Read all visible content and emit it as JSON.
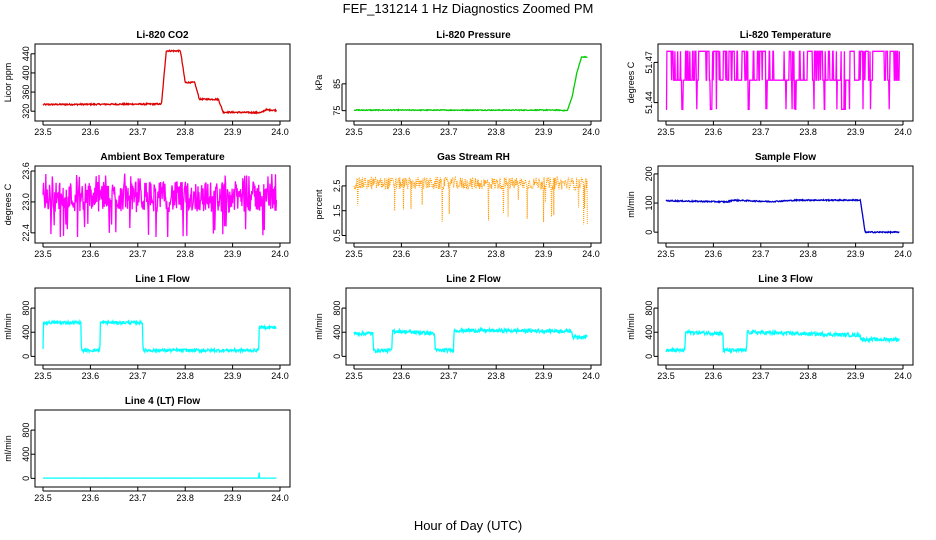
{
  "title": "FEF_131214  1 Hz Diagnostics Zoomed PM",
  "xlabel": "Hour of Day (UTC)",
  "chart_data": [
    {
      "id": "co2",
      "type": "line",
      "title": "Li-820 CO2",
      "ylabel": "Licor ppm",
      "color": "#dd0000",
      "xlim": [
        23.5,
        24.0
      ],
      "ylim": [
        310,
        450
      ],
      "yticks": [
        "320",
        "360",
        "400",
        "440"
      ],
      "ytick_values": [
        320,
        360,
        400,
        440
      ],
      "xticks": [
        "23.5",
        "23.6",
        "23.7",
        "23.8",
        "23.9",
        "24.0"
      ],
      "segments": [
        [
          23.5,
          334
        ],
        [
          23.75,
          335
        ],
        [
          23.76,
          446
        ],
        [
          23.79,
          446
        ],
        [
          23.8,
          380
        ],
        [
          23.82,
          380
        ],
        [
          23.83,
          345
        ],
        [
          23.87,
          345
        ],
        [
          23.88,
          318
        ],
        [
          23.96,
          317
        ],
        [
          23.97,
          323
        ],
        [
          23.99,
          322
        ]
      ],
      "noise": 1.5
    },
    {
      "id": "pressure",
      "type": "line",
      "title": "Li-820 Pressure",
      "ylabel": "kPa",
      "color": "#00cc00",
      "xlim": [
        23.5,
        24.0
      ],
      "ylim": [
        73,
        98
      ],
      "yticks": [
        "75",
        "85"
      ],
      "ytick_values": [
        75,
        85
      ],
      "xticks": [
        "23.5",
        "23.6",
        "23.7",
        "23.8",
        "23.9",
        "24.0"
      ],
      "segments": [
        [
          23.5,
          75.2
        ],
        [
          23.93,
          75.2
        ],
        [
          23.95,
          75.0
        ],
        [
          23.96,
          80
        ],
        [
          23.97,
          89
        ],
        [
          23.98,
          95
        ],
        [
          24.0,
          95
        ]
      ],
      "noise": 0.15
    },
    {
      "id": "licor_temp",
      "type": "line",
      "title": "Li-820 Temperature",
      "ylabel": "degrees C",
      "color": "#ff00ff",
      "xlim": [
        23.5,
        24.0
      ],
      "ylim": [
        51.43,
        51.48
      ],
      "yticks": [
        "51.44",
        "51.47"
      ],
      "ytick_values": [
        51.44,
        51.47
      ],
      "xticks": [
        "23.5",
        "23.6",
        "23.7",
        "23.8",
        "23.9",
        "24.0"
      ],
      "levels": [
        51.435,
        51.4567,
        51.4783
      ],
      "pattern": "discrete"
    },
    {
      "id": "ambient_box_temp",
      "type": "line",
      "title": "Ambient Box Temperature",
      "ylabel": "degrees C",
      "color": "#ff00ff",
      "xlim": [
        23.5,
        24.0
      ],
      "ylim": [
        22.3,
        23.6
      ],
      "yticks": [
        "22.4",
        "23.0",
        "23.6"
      ],
      "ytick_values": [
        22.4,
        23.0,
        23.6
      ],
      "xticks": [
        "23.5",
        "23.6",
        "23.7",
        "23.8",
        "23.9",
        "24.0"
      ],
      "segments": [
        [
          23.5,
          23.1
        ],
        [
          24.0,
          23.1
        ]
      ],
      "noise": 0.3,
      "pattern": "noisy"
    },
    {
      "id": "gas_stream_rh",
      "type": "scatter",
      "title": "Gas Stream RH",
      "ylabel": "percent",
      "color": "#ff9900",
      "xlim": [
        23.5,
        24.0
      ],
      "ylim": [
        0.4,
        3.1
      ],
      "yticks": [
        "0.5",
        "1.5",
        "2.5"
      ],
      "ytick_values": [
        0.5,
        1.5,
        2.5
      ],
      "xticks": [
        "23.5",
        "23.6",
        "23.7",
        "23.8",
        "23.9",
        "24.0"
      ],
      "segments": [
        [
          23.5,
          2.6
        ],
        [
          24.0,
          2.6
        ]
      ],
      "noise": 0.25,
      "pattern": "rh"
    },
    {
      "id": "sample_flow",
      "type": "line",
      "title": "Sample Flow",
      "ylabel": "ml/min",
      "color": "#0000cc",
      "xlim": [
        23.5,
        24.0
      ],
      "ylim": [
        -20,
        210
      ],
      "yticks": [
        "0",
        "100",
        "200"
      ],
      "ytick_values": [
        0,
        100,
        200
      ],
      "xticks": [
        "23.5",
        "23.6",
        "23.7",
        "23.8",
        "23.9",
        "24.0"
      ],
      "segments": [
        [
          23.5,
          108
        ],
        [
          23.63,
          104
        ],
        [
          23.64,
          110
        ],
        [
          23.72,
          105
        ],
        [
          23.78,
          110
        ],
        [
          23.91,
          110
        ],
        [
          23.92,
          0
        ],
        [
          24.0,
          0
        ]
      ],
      "noise": 2
    },
    {
      "id": "line1_flow",
      "type": "line",
      "title": "Line 1 Flow",
      "ylabel": "ml/min",
      "color": "#00ffff",
      "xlim": [
        23.5,
        24.0
      ],
      "ylim": [
        -60,
        1050
      ],
      "yticks": [
        "0",
        "400",
        "800"
      ],
      "ytick_values": [
        0,
        400,
        800
      ],
      "xticks": [
        "23.5",
        "23.6",
        "23.7",
        "23.8",
        "23.9",
        "24.0"
      ],
      "segments": [
        [
          23.5,
          100
        ],
        [
          23.501,
          560
        ],
        [
          23.58,
          560
        ],
        [
          23.581,
          100
        ],
        [
          23.62,
          100
        ],
        [
          23.621,
          560
        ],
        [
          23.71,
          560
        ],
        [
          23.711,
          100
        ],
        [
          23.955,
          100
        ],
        [
          23.956,
          480
        ],
        [
          23.99,
          480
        ]
      ],
      "noise": 25
    },
    {
      "id": "line2_flow",
      "type": "line",
      "title": "Line 2 Flow",
      "ylabel": "ml/min",
      "color": "#00ffff",
      "xlim": [
        23.5,
        24.0
      ],
      "ylim": [
        -60,
        1050
      ],
      "yticks": [
        "0",
        "400",
        "800"
      ],
      "ytick_values": [
        0,
        400,
        800
      ],
      "xticks": [
        "23.5",
        "23.6",
        "23.7",
        "23.8",
        "23.9",
        "24.0"
      ],
      "segments": [
        [
          23.5,
          380
        ],
        [
          23.54,
          380
        ],
        [
          23.541,
          100
        ],
        [
          23.58,
          100
        ],
        [
          23.581,
          420
        ],
        [
          23.67,
          380
        ],
        [
          23.671,
          100
        ],
        [
          23.71,
          100
        ],
        [
          23.711,
          430
        ],
        [
          23.96,
          420
        ],
        [
          23.961,
          320
        ],
        [
          23.99,
          330
        ]
      ],
      "noise": 30
    },
    {
      "id": "line3_flow",
      "type": "line",
      "title": "Line 3 Flow",
      "ylabel": "ml/min",
      "color": "#00ffff",
      "xlim": [
        23.5,
        24.0
      ],
      "ylim": [
        -60,
        1050
      ],
      "yticks": [
        "0",
        "400",
        "800"
      ],
      "ytick_values": [
        0,
        400,
        800
      ],
      "xticks": [
        "23.5",
        "23.6",
        "23.7",
        "23.8",
        "23.9",
        "24.0"
      ],
      "segments": [
        [
          23.5,
          100
        ],
        [
          23.54,
          100
        ],
        [
          23.541,
          400
        ],
        [
          23.62,
          380
        ],
        [
          23.621,
          100
        ],
        [
          23.67,
          100
        ],
        [
          23.671,
          400
        ],
        [
          23.91,
          350
        ],
        [
          23.911,
          280
        ],
        [
          23.99,
          280
        ]
      ],
      "noise": 30
    },
    {
      "id": "line4_flow",
      "type": "line",
      "title": "Line 4 (LT) Flow",
      "ylabel": "ml/min",
      "color": "#00ffff",
      "xlim": [
        23.5,
        24.0
      ],
      "ylim": [
        -60,
        1050
      ],
      "yticks": [
        "0",
        "400",
        "800"
      ],
      "ytick_values": [
        0,
        400,
        800
      ],
      "xticks": [
        "23.5",
        "23.6",
        "23.7",
        "23.8",
        "23.9",
        "24.0"
      ],
      "segments": [
        [
          23.5,
          5
        ],
        [
          23.955,
          5
        ],
        [
          23.956,
          100
        ],
        [
          23.957,
          5
        ],
        [
          24.0,
          5
        ]
      ],
      "noise": 1
    }
  ]
}
